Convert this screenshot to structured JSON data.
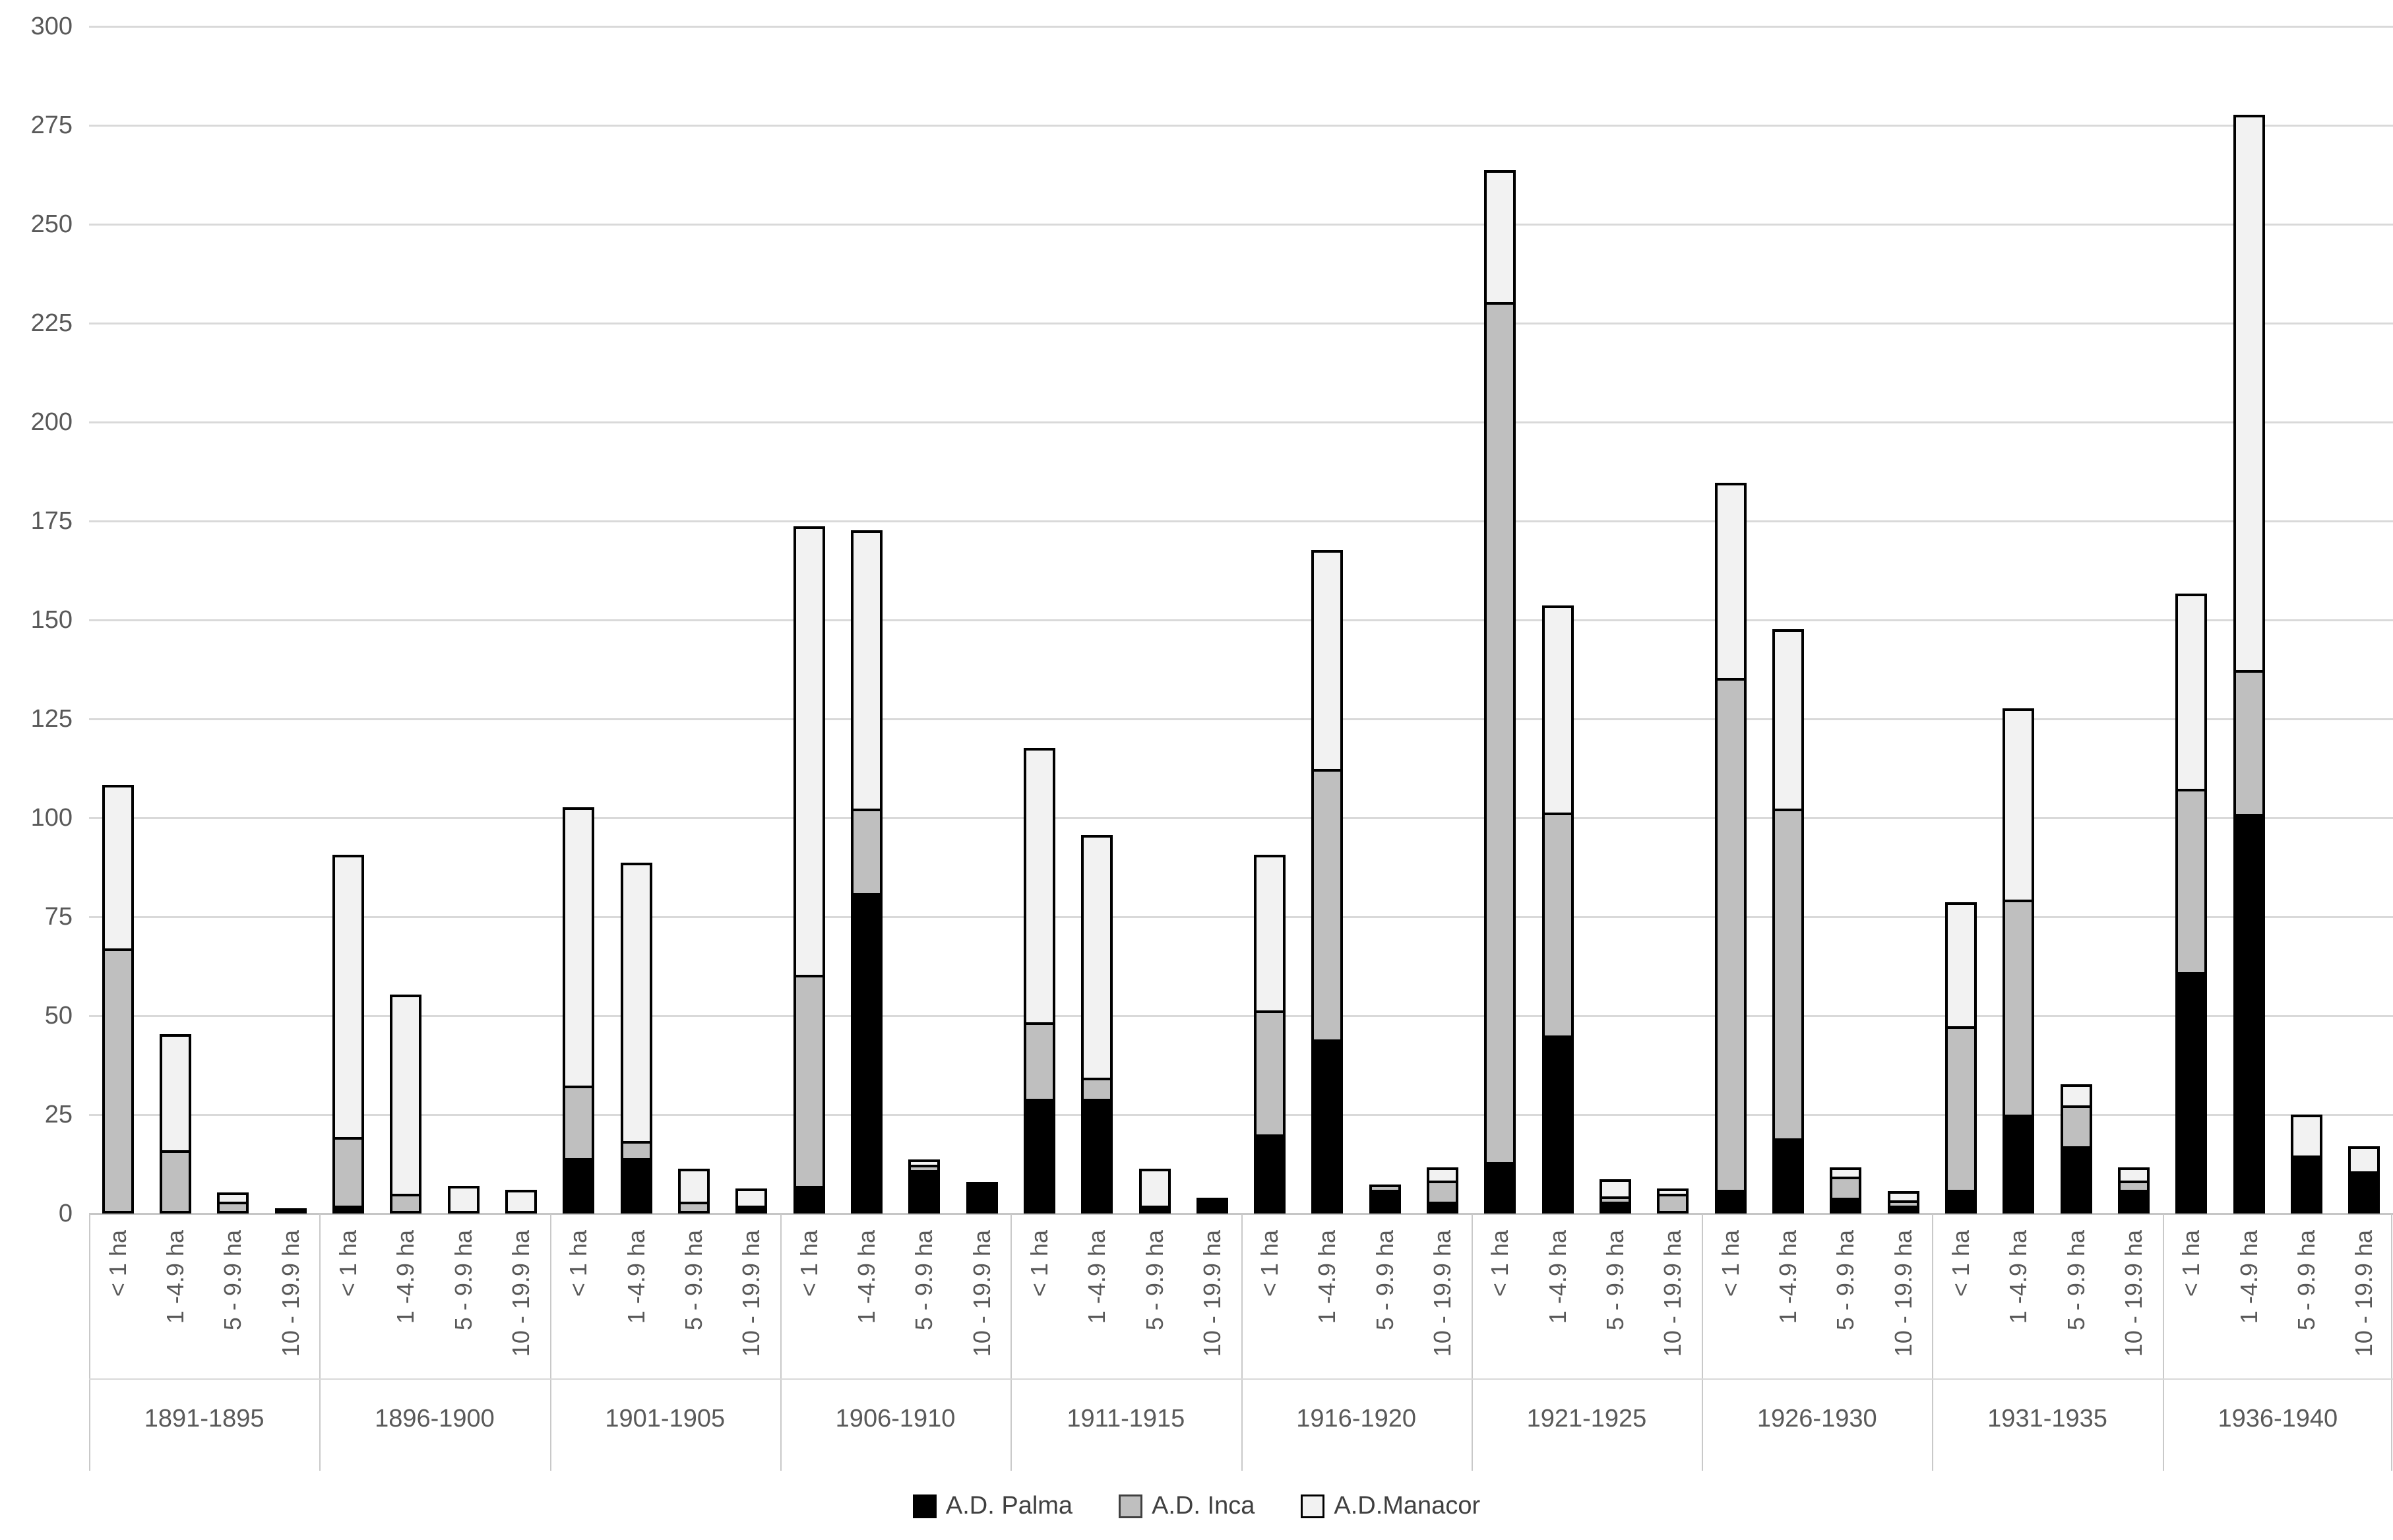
{
  "chart_data": {
    "type": "bar",
    "stacked": true,
    "title": "",
    "xlabel": "",
    "ylabel": "",
    "ylim": [
      0,
      300
    ],
    "ytick_step": 25,
    "ytick_labels": [
      "0",
      "25",
      "50",
      "75",
      "100",
      "125",
      "150",
      "175",
      "200",
      "225",
      "250",
      "275",
      "300"
    ],
    "grid": true,
    "legend_position": "bottom",
    "series": [
      {
        "name": "A.D. Palma",
        "color": "#000000"
      },
      {
        "name": "A.D. Inca",
        "color": "#bfbfbf"
      },
      {
        "name": "A.D.Manacor",
        "color": "#f2f2f2"
      }
    ],
    "size_categories": [
      "< 1 ha",
      "1 -4.9 ha",
      "5 - 9.9 ha",
      "10 - 19.9 ha"
    ],
    "periods": [
      {
        "label": "1891-1895",
        "bars": [
          {
            "category": "< 1 ha",
            "values": [
              0,
              67,
              42
            ]
          },
          {
            "category": "1 -4.9 ha",
            "values": [
              0,
              16,
              30
            ]
          },
          {
            "category": "5 - 9.9 ha",
            "values": [
              0,
              3,
              3
            ]
          },
          {
            "category": "10 - 19.9 ha",
            "values": [
              0,
              0,
              1
            ]
          }
        ]
      },
      {
        "label": "1896-1900",
        "bars": [
          {
            "category": "< 1 ha",
            "values": [
              2,
              18,
              72
            ]
          },
          {
            "category": "1 -4.9 ha",
            "values": [
              0,
              5,
              51
            ]
          },
          {
            "category": "5 - 9.9 ha",
            "values": [
              0,
              0,
              7
            ]
          },
          {
            "category": "10 - 19.9 ha",
            "values": [
              0,
              0,
              6
            ]
          }
        ]
      },
      {
        "label": "1901-1905",
        "bars": [
          {
            "category": "< 1 ha",
            "values": [
              14,
              19,
              71
            ]
          },
          {
            "category": "1 -4.9 ha",
            "values": [
              14,
              5,
              71
            ]
          },
          {
            "category": "5 - 9.9 ha",
            "values": [
              0,
              3,
              9
            ]
          },
          {
            "category": "10 - 19.9 ha",
            "values": [
              2,
              0,
              5
            ]
          }
        ]
      },
      {
        "label": "1906-1910",
        "bars": [
          {
            "category": "< 1 ha",
            "values": [
              7,
              54,
              114
            ]
          },
          {
            "category": "1 -4.9 ha",
            "values": [
              81,
              22,
              71
            ]
          },
          {
            "category": "5 - 9.9 ha",
            "values": [
              11,
              2,
              2
            ]
          },
          {
            "category": "10 - 19.9 ha",
            "values": [
              8,
              0,
              0
            ]
          }
        ]
      },
      {
        "label": "1911-1915",
        "bars": [
          {
            "category": "< 1 ha",
            "values": [
              29,
              20,
              70
            ]
          },
          {
            "category": "1 -4.9 ha",
            "values": [
              29,
              6,
              62
            ]
          },
          {
            "category": "5 - 9.9 ha",
            "values": [
              2,
              0,
              10
            ]
          },
          {
            "category": "10 - 19.9 ha",
            "values": [
              4,
              0,
              0
            ]
          }
        ]
      },
      {
        "label": "1916-1920",
        "bars": [
          {
            "category": "< 1 ha",
            "values": [
              20,
              32,
              40
            ]
          },
          {
            "category": "1 -4.9 ha",
            "values": [
              44,
              69,
              56
            ]
          },
          {
            "category": "5 - 9.9 ha",
            "values": [
              6,
              2,
              0
            ]
          },
          {
            "category": "10 - 19.9 ha",
            "values": [
              3,
              6,
              4
            ]
          }
        ]
      },
      {
        "label": "1921-1925",
        "bars": [
          {
            "category": "< 1 ha",
            "values": [
              13,
              218,
              34
            ]
          },
          {
            "category": "1 -4.9 ha",
            "values": [
              45,
              57,
              53
            ]
          },
          {
            "category": "5 - 9.9 ha",
            "values": [
              3,
              2,
              5
            ]
          },
          {
            "category": "10 - 19.9 ha",
            "values": [
              0,
              5,
              2
            ]
          }
        ]
      },
      {
        "label": "1926-1930",
        "bars": [
          {
            "category": "< 1 ha",
            "values": [
              6,
              130,
              50
            ]
          },
          {
            "category": "1 -4.9 ha",
            "values": [
              19,
              84,
              46
            ]
          },
          {
            "category": "5 - 9.9 ha",
            "values": [
              4,
              6,
              3
            ]
          },
          {
            "category": "10 - 19.9 ha",
            "values": [
              2,
              2,
              3
            ]
          }
        ]
      },
      {
        "label": "1931-1935",
        "bars": [
          {
            "category": "< 1 ha",
            "values": [
              6,
              42,
              32
            ]
          },
          {
            "category": "1 -4.9 ha",
            "values": [
              25,
              55,
              49
            ]
          },
          {
            "category": "5 - 9.9 ha",
            "values": [
              17,
              11,
              6
            ]
          },
          {
            "category": "10 - 19.9 ha",
            "values": [
              6,
              3,
              4
            ]
          }
        ]
      },
      {
        "label": "1936-1940",
        "bars": [
          {
            "category": "< 1 ha",
            "values": [
              61,
              47,
              50
            ]
          },
          {
            "category": "1 -4.9 ha",
            "values": [
              101,
              37,
              141
            ]
          },
          {
            "category": "5 - 9.9 ha",
            "values": [
              14,
              1,
              11
            ]
          },
          {
            "category": "10 - 19.9 ha",
            "values": [
              10,
              1,
              7
            ]
          }
        ]
      }
    ]
  },
  "legend": {
    "items": [
      {
        "label": "A.D. Palma",
        "color": "#000000",
        "border": "#000000"
      },
      {
        "label": "A.D. Inca",
        "color": "#bfbfbf",
        "border": "#404040"
      },
      {
        "label": "A.D.Manacor",
        "color": "#f2f2f2",
        "border": "#000000"
      }
    ]
  },
  "colors": {
    "palma": "#000000",
    "inca": "#bfbfbf",
    "manacor": "#f2f2f2",
    "gridline": "#d9d9d9",
    "axis_text": "#595959",
    "separator": "#c9c9c9",
    "background": "#ffffff"
  }
}
